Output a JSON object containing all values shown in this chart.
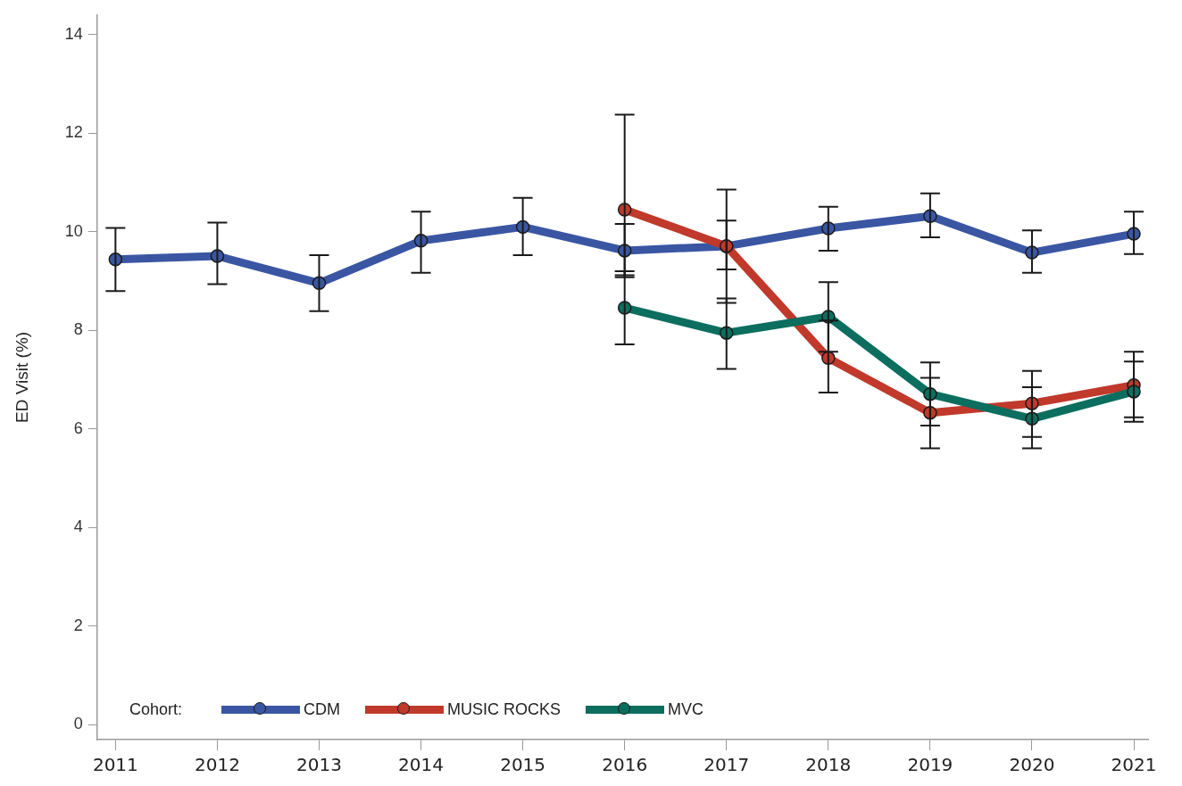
{
  "chart_data": {
    "type": "line",
    "ylabel": "ED Visit (%)",
    "legend_title": "Cohort:",
    "legend": "bottom left",
    "marker": "circle",
    "line_style": "solid",
    "x": [
      2011,
      2012,
      2013,
      2014,
      2015,
      2016,
      2017,
      2018,
      2019,
      2020,
      2021
    ],
    "xlim": [
      2010.82,
      2021.14
    ],
    "xticks": [
      2011,
      2012,
      2013,
      2014,
      2015,
      2016,
      2017,
      2018,
      2019,
      2020,
      2021
    ],
    "ylim": [
      -0.3,
      14.4
    ],
    "yticks": [
      0,
      2,
      4,
      6,
      8,
      10,
      12,
      14
    ],
    "series": [
      {
        "name": "CDM",
        "color": "#3a56a3",
        "values": [
          9.44,
          9.51,
          8.96,
          9.82,
          10.1,
          9.62,
          9.71,
          10.07,
          10.32,
          9.58,
          9.96
        ],
        "errors": [
          [
            8.8,
            10.08
          ],
          [
            8.94,
            10.19
          ],
          [
            8.39,
            9.53
          ],
          [
            9.17,
            10.41
          ],
          [
            9.53,
            10.69
          ],
          [
            9.12,
            10.16
          ],
          [
            9.24,
            10.23
          ],
          [
            9.62,
            10.51
          ],
          [
            9.89,
            10.78
          ],
          [
            9.17,
            10.03
          ],
          [
            9.55,
            10.41
          ]
        ]
      },
      {
        "name": "MUSIC ROCKS",
        "color": "#c0392b",
        "values": [
          null,
          null,
          null,
          null,
          null,
          10.45,
          9.71,
          7.44,
          6.33,
          6.52,
          6.89
        ],
        "errors": [
          null,
          null,
          null,
          null,
          null,
          [
            9.08,
            12.38
          ],
          [
            8.56,
            10.86
          ],
          [
            6.74,
            8.2
          ],
          [
            5.61,
            7.04
          ],
          [
            5.84,
            7.18
          ],
          [
            6.24,
            7.57
          ]
        ]
      },
      {
        "name": "MVC",
        "color": "#0b6e5f",
        "values": [
          null,
          null,
          null,
          null,
          null,
          8.46,
          7.95,
          8.28,
          6.71,
          6.21,
          6.76
        ],
        "errors": [
          null,
          null,
          null,
          null,
          null,
          [
            7.72,
            9.2
          ],
          [
            7.22,
            8.65
          ],
          [
            7.57,
            8.98
          ],
          [
            6.07,
            7.35
          ],
          [
            5.61,
            6.85
          ],
          [
            6.15,
            7.37
          ]
        ]
      }
    ]
  }
}
